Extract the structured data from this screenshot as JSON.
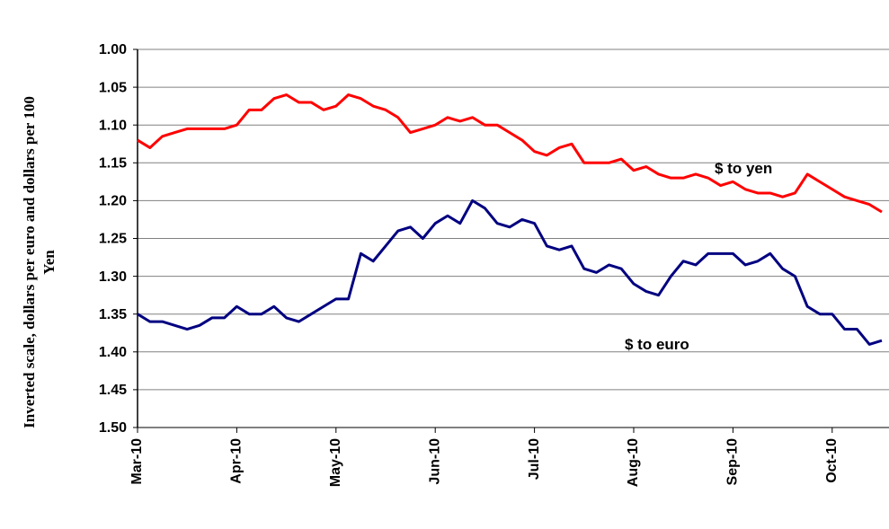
{
  "chart_data": {
    "type": "line",
    "y_label": "Inverted scale, dollars per euro and dollars per 100 Yen",
    "categories": [
      "Mar-10",
      null,
      null,
      null,
      null,
      null,
      null,
      null,
      "Apr-10",
      null,
      null,
      null,
      null,
      null,
      null,
      null,
      "May-10",
      null,
      null,
      null,
      null,
      null,
      null,
      null,
      "Jun-10",
      null,
      null,
      null,
      null,
      null,
      null,
      null,
      "Jul-10",
      null,
      null,
      null,
      null,
      null,
      null,
      null,
      "Aug-10",
      null,
      null,
      null,
      null,
      null,
      null,
      null,
      "Sep-10",
      null,
      null,
      null,
      null,
      null,
      null,
      null,
      "Oct-10",
      null,
      null,
      null,
      null
    ],
    "series": [
      {
        "name": "$ to yen",
        "color": "#ff0000",
        "values": [
          1.12,
          1.13,
          1.115,
          1.11,
          1.105,
          1.105,
          1.105,
          1.105,
          1.1,
          1.08,
          1.08,
          1.065,
          1.06,
          1.07,
          1.07,
          1.08,
          1.075,
          1.06,
          1.065,
          1.075,
          1.08,
          1.09,
          1.11,
          1.105,
          1.1,
          1.09,
          1.095,
          1.09,
          1.1,
          1.1,
          1.11,
          1.12,
          1.135,
          1.14,
          1.13,
          1.125,
          1.15,
          1.15,
          1.15,
          1.145,
          1.16,
          1.155,
          1.165,
          1.17,
          1.17,
          1.165,
          1.17,
          1.18,
          1.175,
          1.185,
          1.19,
          1.19,
          1.195,
          1.19,
          1.165,
          1.175,
          1.185,
          1.195,
          1.2,
          1.205,
          1.215
        ]
      },
      {
        "name": "$ to euro",
        "color": "#000080",
        "values": [
          1.35,
          1.36,
          1.36,
          1.365,
          1.37,
          1.365,
          1.355,
          1.355,
          1.34,
          1.35,
          1.35,
          1.34,
          1.355,
          1.36,
          1.35,
          1.34,
          1.33,
          1.33,
          1.27,
          1.28,
          1.26,
          1.24,
          1.235,
          1.25,
          1.23,
          1.22,
          1.23,
          1.2,
          1.21,
          1.23,
          1.235,
          1.225,
          1.23,
          1.26,
          1.265,
          1.26,
          1.29,
          1.295,
          1.285,
          1.29,
          1.31,
          1.32,
          1.325,
          1.3,
          1.28,
          1.285,
          1.27,
          1.27,
          1.27,
          1.285,
          1.28,
          1.27,
          1.29,
          1.3,
          1.34,
          1.35,
          1.35,
          1.37,
          1.37,
          1.39,
          1.385
        ]
      }
    ],
    "ylim": [
      1.0,
      1.5
    ],
    "y_inverted": true,
    "yticks": [
      {
        "value": 1.0,
        "label": "1.00"
      },
      1.05,
      {
        "value": 1.1,
        "label": "1.10"
      },
      1.15,
      {
        "value": 1.2,
        "label": "1.20"
      },
      1.25,
      {
        "value": 1.3,
        "label": "1.30"
      },
      1.35,
      {
        "value": 1.4,
        "label": "1.40"
      },
      1.45,
      {
        "value": 1.5,
        "label": "1.50"
      }
    ],
    "grid": true
  }
}
